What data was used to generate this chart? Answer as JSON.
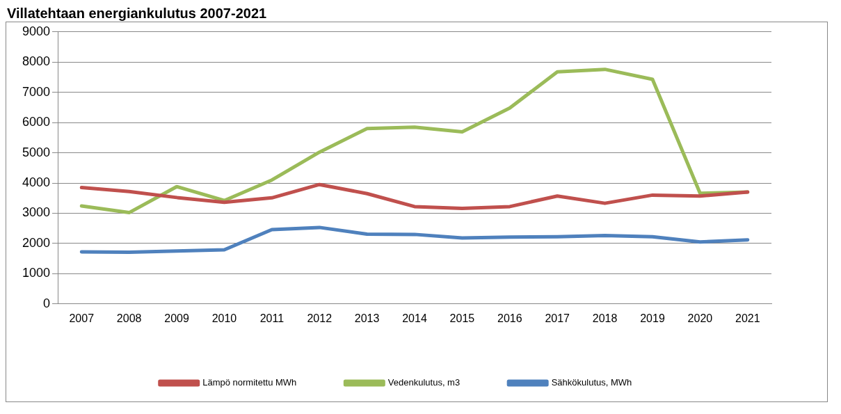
{
  "chart_data": {
    "type": "line",
    "title": "Villatehtaan energiankulutus 2007-2021",
    "categories": [
      "2007",
      "2008",
      "2009",
      "2010",
      "2011",
      "2012",
      "2013",
      "2014",
      "2015",
      "2016",
      "2017",
      "2018",
      "2019",
      "2020",
      "2021"
    ],
    "series": [
      {
        "name": "Lämpö normitettu MWh",
        "color": "#c0504d",
        "values": [
          3850,
          3720,
          3520,
          3360,
          3510,
          3950,
          3650,
          3220,
          3160,
          3220,
          3570,
          3330,
          3600,
          3570,
          3700
        ]
      },
      {
        "name": "Vedenkulutus, m3",
        "color": "#9bbb59",
        "values": [
          3240,
          3020,
          3880,
          3420,
          4100,
          5020,
          5800,
          5850,
          5690,
          6480,
          7680,
          7760,
          7430,
          3660,
          3700
        ]
      },
      {
        "name": "Sähkökulutus, MWh",
        "color": "#4f81bd",
        "values": [
          1720,
          1710,
          1750,
          1790,
          2460,
          2530,
          2310,
          2300,
          2180,
          2210,
          2220,
          2260,
          2220,
          2050,
          2120
        ]
      }
    ],
    "ylim": [
      0,
      9000
    ],
    "yticks": [
      0,
      1000,
      2000,
      3000,
      4000,
      5000,
      6000,
      7000,
      8000,
      9000
    ],
    "grid": "y",
    "legend": "bottom",
    "marker": "none",
    "line_style": "solid"
  }
}
